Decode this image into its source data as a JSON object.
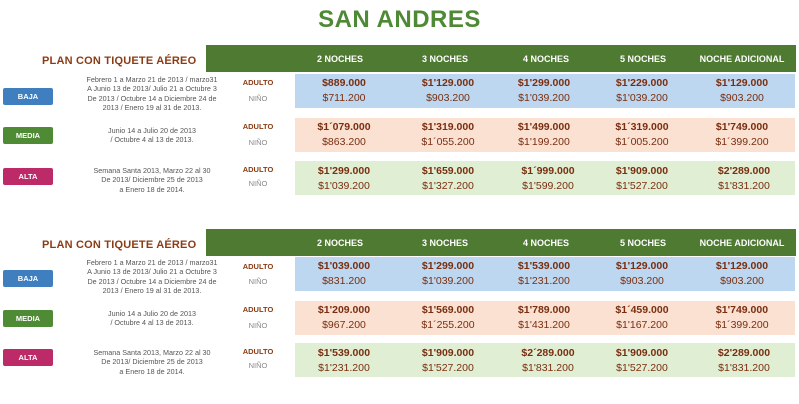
{
  "title": "SAN ANDRES",
  "columns": [
    "2 NOCHES",
    "3 NOCHES",
    "4 NOCHES",
    "5 NOCHES",
    "NOCHE ADICIONAL"
  ],
  "labels": {
    "adult": "ADULTO",
    "child": "NIÑO"
  },
  "colors": {
    "title": "#4e8a35",
    "header": "#4e7a32",
    "baja": "#3f7fc0",
    "media": "#4f8a34",
    "alta": "#bd2a68",
    "baja_band": "#bcd7ef",
    "media_band": "#fbe1d2",
    "alta_band": "#e0eed3"
  },
  "tables": [
    {
      "plan": "PLAN CON TIQUETE   AÉREO",
      "rows": [
        {
          "season": "BAJA",
          "dates": [
            "Febrero  1 a Marzo 21 de 2013 / marzo31",
            "A Junio 13 de 2013/ Julio 21 a Octubre 3",
            "De 2013 / Octubre 14 a Diciembre  24 de",
            "2013 / Enero 19 al 31 de 2013."
          ],
          "adult": [
            "$889.000",
            "$1'129.000",
            "$1'299.000",
            "$1'229.000",
            "$1'129.000"
          ],
          "child": [
            "$711.200",
            "$903.200",
            "$1'039.200",
            "$1'039.200",
            "$903.200"
          ]
        },
        {
          "season": "MEDIA",
          "dates": [
            "Junio 14 a Julio 20 de  2013",
            "/ Octubre 4 al 13 de 2013."
          ],
          "adult": [
            "$1´079.000",
            "$1'319.000",
            "$1'499.000",
            "$1´319.000",
            "$1'749.000"
          ],
          "child": [
            "$863.200",
            "$1´055.200",
            "$1'199.200",
            "$1´005.200",
            "$1´399.200"
          ]
        },
        {
          "season": "ALTA",
          "dates": [
            "Semana Santa 2013, Marzo 22 al 30",
            "De 2013/ Diciembre 25 de 2013",
            "a Enero 18 de 2014."
          ],
          "adult": [
            "$1'299.000",
            "$1'659.000",
            "$1´999.000",
            "$1'909.000",
            "$2'289.000"
          ],
          "child": [
            "$1'039.200",
            "$1'327.200",
            "$1'599.200",
            "$1'527.200",
            "$1'831.200"
          ]
        }
      ]
    },
    {
      "plan": "PLAN CON TIQUETE   AÉREO",
      "rows": [
        {
          "season": "BAJA",
          "dates": [
            "Febrero  1 a Marzo 21 de 2013 / marzo31",
            "A Junio 13 de 2013/ Julio 21 a Octubre 3",
            "De 2013 / Octubre 14 a Diciembre  24 de",
            "2013 / Enero 19 al 31 de 2013."
          ],
          "adult": [
            "$1'039.000",
            "$1'299.000",
            "$1'539.000",
            "$1'129.000",
            "$1'129.000"
          ],
          "child": [
            "$831.200",
            "$1'039.200",
            "$1'231.200",
            "$903.200",
            "$903.200"
          ]
        },
        {
          "season": "MEDIA",
          "dates": [
            "Junio 14 a Julio 20 de  2013",
            "/ Octubre 4 al 13 de 2013."
          ],
          "adult": [
            "$1'209.000",
            "$1'569.000",
            "$1'789.000",
            "$1´459.000",
            "$1'749.000"
          ],
          "child": [
            "$967.200",
            "$1´255.200",
            "$1'431.200",
            "$1'167.200",
            "$1´399.200"
          ]
        },
        {
          "season": "ALTA",
          "dates": [
            "Semana Santa 2013, Marzo 22 al 30",
            "De 2013/ Diciembre 25 de 2013",
            "a Enero 18 de 2014."
          ],
          "adult": [
            "$1'539.000",
            "$1'909.000",
            "$2´289.000",
            "$1'909.000",
            "$2'289.000"
          ],
          "child": [
            "$1'231.200",
            "$1'527.200",
            "$1'831.200",
            "$1'527.200",
            "$1'831.200"
          ]
        }
      ]
    }
  ]
}
